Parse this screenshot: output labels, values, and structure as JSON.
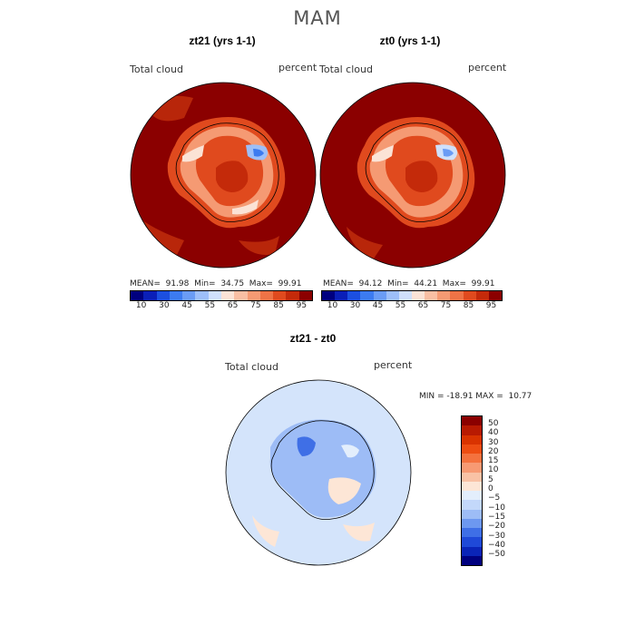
{
  "figure": {
    "title": "MAM",
    "panels": [
      {
        "title": "zt21 (yrs 1-1)",
        "variable": "Total cloud",
        "units": "percent",
        "stats": "MEAN=  91.98  Min=  34.75  Max=  99.91"
      },
      {
        "title": "zt0 (yrs 1-1)",
        "variable": "Total cloud",
        "units": "percent",
        "stats": "MEAN=  94.12  Min=  44.21  Max=  99.91"
      }
    ],
    "diff": {
      "title": "zt21 - zt0",
      "variable": "Total cloud",
      "units": "percent",
      "stats": "MIN = -18.91 MAX =  10.77"
    }
  },
  "colorbar_top": {
    "ticks": [
      "10",
      "30",
      "45",
      "55",
      "65",
      "75",
      "85",
      "95"
    ],
    "colors": [
      "#00007f",
      "#0a1fb8",
      "#1c4fe0",
      "#3c7bf0",
      "#6a9cf5",
      "#9dbff9",
      "#cfe0fb",
      "#fbe3d6",
      "#f9bfa3",
      "#f59a73",
      "#ee7346",
      "#e04a1e",
      "#c42a0a",
      "#8b0000"
    ]
  },
  "colorbar_diff": {
    "ticks": [
      "50",
      "40",
      "30",
      "20",
      "15",
      "10",
      "5",
      "0",
      "−5",
      "−10",
      "−15",
      "−20",
      "−30",
      "−40",
      "−50"
    ],
    "colors": [
      "#8b0000",
      "#b81a02",
      "#d93300",
      "#ee4d12",
      "#f4723e",
      "#f79a73",
      "#f9c2a5",
      "#fde6d6",
      "#e3eefc",
      "#c3d8fa",
      "#9dbcf6",
      "#6d98f0",
      "#3f6fe6",
      "#1f49d8",
      "#0a24b8",
      "#00007f"
    ]
  }
}
